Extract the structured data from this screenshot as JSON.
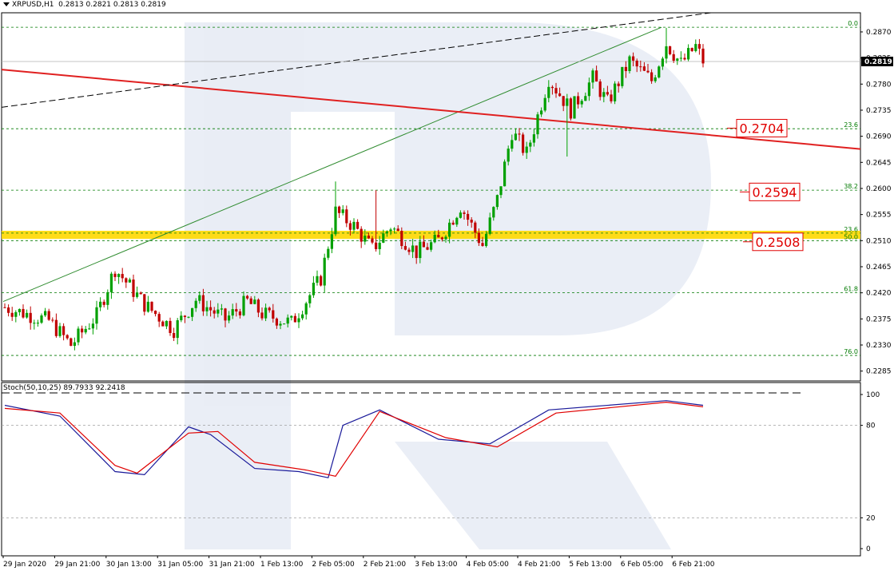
{
  "header": {
    "symbol": "XRPUSD,H1",
    "ohlc": "0.2813 0.2821 0.2813 0.2819"
  },
  "indicator": {
    "label": "Stoch(50,10,25) 89.7933 92.2418",
    "scale": [
      "100",
      "80",
      "20",
      "0"
    ]
  },
  "price_axis": {
    "ticks": [
      "0.2870",
      "0.2825",
      "0.2780",
      "0.2735",
      "0.2690",
      "0.2645",
      "0.2600",
      "0.2555",
      "0.2510",
      "0.2465",
      "0.2420",
      "0.2375",
      "0.2330",
      "0.2285"
    ],
    "current_price": "0.2819"
  },
  "time_axis": [
    "29 Jan 2020",
    "29 Jan 21:00",
    "30 Jan 13:00",
    "31 Jan 05:00",
    "31 Jan 21:00",
    "1 Feb 13:00",
    "2 Feb 05:00",
    "2 Feb 21:00",
    "3 Feb 13:00",
    "4 Feb 05:00",
    "4 Feb 21:00",
    "5 Feb 13:00",
    "6 Feb 05:00",
    "6 Feb 21:00"
  ],
  "fib_levels": [
    {
      "label": "0.0",
      "price": 0.2878
    },
    {
      "label": "23.6",
      "price": 0.2703
    },
    {
      "label": "38.2",
      "price": 0.2597
    },
    {
      "label": "23.6",
      "price": 0.2523
    },
    {
      "label": "50.0",
      "price": 0.251
    },
    {
      "label": "61.8",
      "price": 0.242
    },
    {
      "label": "76.0",
      "price": 0.2312
    }
  ],
  "price_tags": [
    "0.2704",
    "0.2594",
    "0.2508"
  ],
  "zone": {
    "low": 0.2513,
    "high": 0.2527,
    "color": "#ffd800"
  },
  "colors": {
    "bull": "#00a000",
    "bear": "#c00000",
    "fib": "#007a00",
    "support_line": "#e02020",
    "uptrend": "#2e8b2e",
    "channel": "#000000",
    "stoch_main": "#1a1a9a",
    "stoch_signal": "#e00000",
    "tag": "#e00000"
  },
  "chart_data": {
    "type": "candlestick",
    "price_range": [
      0.2268,
      0.2903
    ],
    "close_path": [
      [
        0,
        0.2395
      ],
      [
        12,
        0.2372
      ],
      [
        18,
        0.233
      ],
      [
        25,
        0.2381
      ],
      [
        30,
        0.2462
      ],
      [
        38,
        0.24
      ],
      [
        46,
        0.2357
      ],
      [
        52,
        0.2408
      ],
      [
        60,
        0.2374
      ],
      [
        66,
        0.2405
      ],
      [
        70,
        0.2384
      ],
      [
        78,
        0.2368
      ],
      [
        86,
        0.2445
      ],
      [
        90,
        0.256
      ],
      [
        95,
        0.2535
      ],
      [
        100,
        0.2495
      ],
      [
        105,
        0.2535
      ],
      [
        112,
        0.249
      ],
      [
        118,
        0.251
      ],
      [
        124,
        0.257
      ],
      [
        130,
        0.2502
      ],
      [
        134,
        0.2581
      ],
      [
        138,
        0.2698
      ],
      [
        142,
        0.266
      ],
      [
        148,
        0.279
      ],
      [
        154,
        0.2735
      ],
      [
        160,
        0.279
      ],
      [
        164,
        0.2748
      ],
      [
        170,
        0.282
      ],
      [
        176,
        0.2786
      ],
      [
        180,
        0.285
      ],
      [
        184,
        0.2815
      ],
      [
        188,
        0.2845
      ],
      [
        190,
        0.282
      ]
    ],
    "spikes": [
      {
        "bar": 153,
        "low": 0.2655
      },
      {
        "bar": 90,
        "high": 0.2612
      },
      {
        "bar": 101,
        "high": 0.2597
      },
      {
        "bar": 180,
        "high": 0.2877
      }
    ],
    "stochastic": {
      "main": [
        [
          0,
          93
        ],
        [
          15,
          86
        ],
        [
          30,
          50
        ],
        [
          38,
          48
        ],
        [
          50,
          79
        ],
        [
          56,
          74
        ],
        [
          68,
          52
        ],
        [
          80,
          50
        ],
        [
          88,
          46
        ],
        [
          92,
          80
        ],
        [
          102,
          90
        ],
        [
          118,
          71
        ],
        [
          132,
          68
        ],
        [
          148,
          90
        ],
        [
          180,
          96
        ],
        [
          190,
          93
        ]
      ],
      "signal": [
        [
          0,
          91
        ],
        [
          15,
          88
        ],
        [
          30,
          54
        ],
        [
          36,
          49
        ],
        [
          50,
          75
        ],
        [
          58,
          76
        ],
        [
          68,
          56
        ],
        [
          82,
          51
        ],
        [
          90,
          47
        ],
        [
          102,
          89
        ],
        [
          120,
          72
        ],
        [
          134,
          66
        ],
        [
          150,
          88
        ],
        [
          180,
          95
        ],
        [
          190,
          92
        ]
      ]
    }
  }
}
